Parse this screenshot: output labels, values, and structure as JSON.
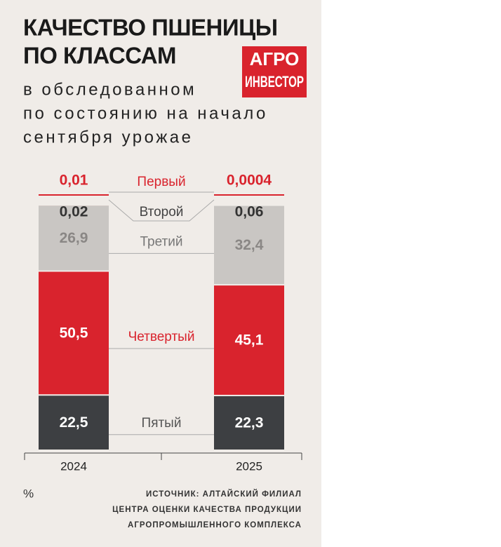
{
  "chart_data": {
    "type": "stacked_bar",
    "title": [
      "КАЧЕСТВО ПШЕНИЦЫ",
      "ПО КЛАССАМ"
    ],
    "subtitle": [
      "в обследованном",
      "по состоянию на начало",
      "сентября урожае"
    ],
    "logo": [
      "АГРО",
      "ИНВЕСТОР"
    ],
    "unit": "%",
    "source": [
      "ИСТОЧНИК: АЛТАЙСКИЙ ФИЛИАЛ",
      "ЦЕНТРА ОЦЕНКИ КАЧЕСТВА ПРОДУКЦИИ",
      "АГРОПРОМЫШЛЕННОГО КОМПЛЕКСА"
    ],
    "categories": [
      "2024",
      "2025"
    ],
    "ylim": [
      0,
      100
    ],
    "series": [
      {
        "name": "Пятый",
        "color": "#3d3f42",
        "values": [
          22.5,
          22.3
        ],
        "value_labels": [
          "22,5",
          "22,3"
        ]
      },
      {
        "name": "Четвертый",
        "color": "#d9232d",
        "values": [
          50.5,
          45.1
        ],
        "value_labels": [
          "50,5",
          "45,1"
        ]
      },
      {
        "name": "Третий",
        "color": "#c9c6c3",
        "values": [
          26.9,
          32.4
        ],
        "value_labels": [
          "26,9",
          "32,4"
        ]
      },
      {
        "name": "Второй",
        "color": "#c9c6c3",
        "values": [
          0.02,
          0.06
        ],
        "value_labels": [
          "0,02",
          "0,06"
        ]
      },
      {
        "name": "Первый",
        "color": "#d9232d",
        "values": [
          0.01,
          0.0004
        ],
        "value_labels": [
          "0,01",
          "0,0004"
        ]
      }
    ]
  }
}
